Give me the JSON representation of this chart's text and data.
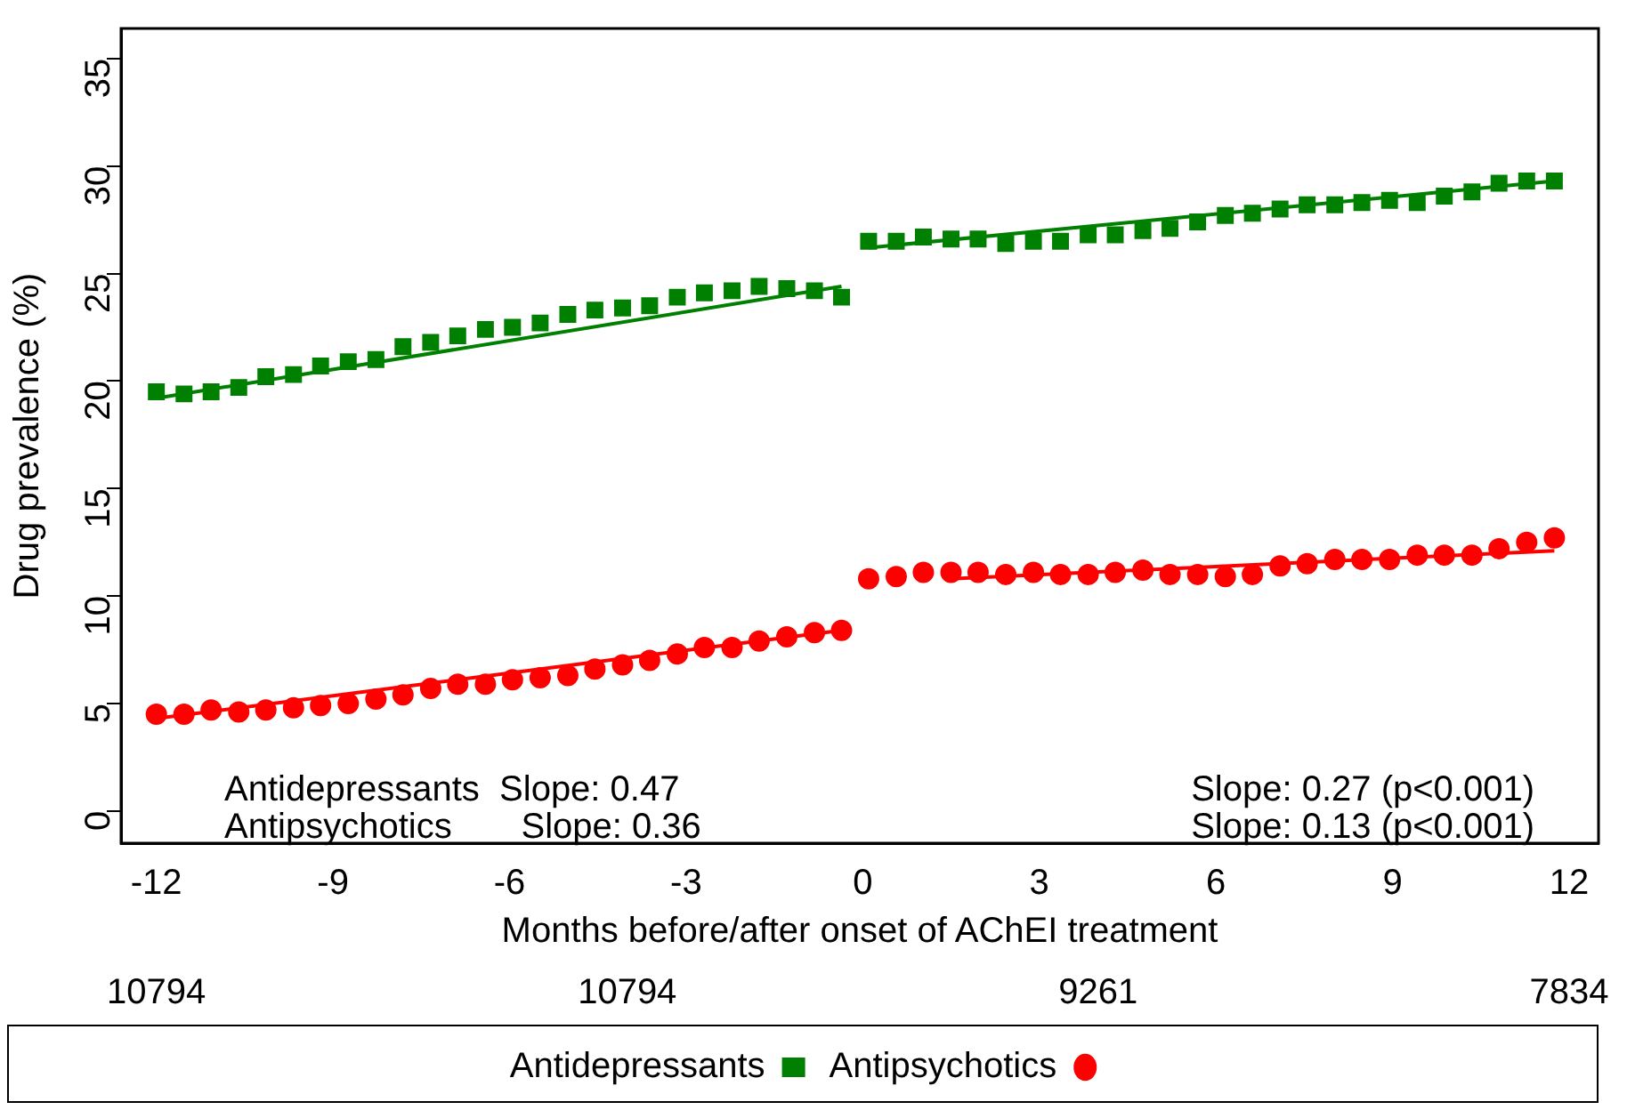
{
  "chart_data": {
    "type": "scatter",
    "xlabel": "Months before/after onset of AChEI treatment",
    "ylabel": "Drug prevalence (%)",
    "xlim": [
      -12.6,
      12.5
    ],
    "xticks": [
      -12,
      -9,
      -6,
      -3,
      0,
      3,
      6,
      9,
      12
    ],
    "ylim": [
      -1.5,
      36.4
    ],
    "yticks": [
      0,
      5,
      10,
      15,
      20,
      25,
      30,
      35
    ],
    "grid": false,
    "legend": "bottom",
    "series": [
      {
        "name": "Antidepressants",
        "color": "#008000",
        "marker": "square",
        "x": [
          -12,
          -11.53,
          -11.07,
          -10.6,
          -10.14,
          -9.67,
          -9.21,
          -8.74,
          -8.27,
          -7.81,
          -7.34,
          -6.88,
          -6.41,
          -5.95,
          -5.48,
          -5.01,
          -4.55,
          -4.08,
          -3.62,
          -3.15,
          -2.69,
          -2.22,
          -1.76,
          -1.29,
          -0.82,
          -0.36
        ],
        "values": [
          19.5,
          19.4,
          19.5,
          19.7,
          20.2,
          20.3,
          20.7,
          20.9,
          21.0,
          21.6,
          21.8,
          22.1,
          22.4,
          22.5,
          22.7,
          23.1,
          23.3,
          23.4,
          23.5,
          23.9,
          24.1,
          24.2,
          24.4,
          24.3,
          24.2,
          23.9
        ]
      },
      {
        "color": "#008000",
        "marker": "square",
        "x": [
          0.1,
          0.57,
          1.03,
          1.5,
          1.96,
          2.43,
          2.9,
          3.36,
          3.83,
          4.29,
          4.76,
          5.22,
          5.69,
          6.16,
          6.62,
          7.09,
          7.55,
          8.02,
          8.48,
          8.95,
          9.42,
          9.88,
          10.35,
          10.81,
          11.28,
          11.75
        ],
        "values": [
          26.5,
          26.5,
          26.7,
          26.6,
          26.6,
          26.4,
          26.5,
          26.5,
          26.8,
          26.8,
          27.0,
          27.1,
          27.4,
          27.7,
          27.8,
          28.0,
          28.2,
          28.2,
          28.3,
          28.4,
          28.3,
          28.6,
          28.8,
          29.2,
          29.3,
          29.3
        ]
      },
      {
        "name": "Antipsychotics",
        "color": "#ff0000",
        "marker": "circle",
        "x": [
          -12,
          -11.53,
          -11.07,
          -10.6,
          -10.14,
          -9.67,
          -9.21,
          -8.74,
          -8.27,
          -7.81,
          -7.34,
          -6.88,
          -6.41,
          -5.95,
          -5.48,
          -5.01,
          -4.55,
          -4.08,
          -3.62,
          -3.15,
          -2.69,
          -2.22,
          -1.76,
          -1.29,
          -0.82,
          -0.36
        ],
        "values": [
          4.5,
          4.5,
          4.7,
          4.6,
          4.7,
          4.8,
          4.9,
          5.0,
          5.2,
          5.4,
          5.7,
          5.9,
          5.9,
          6.1,
          6.2,
          6.3,
          6.6,
          6.8,
          7.0,
          7.3,
          7.6,
          7.6,
          7.9,
          8.1,
          8.3,
          8.4
        ]
      },
      {
        "color": "#ff0000",
        "marker": "circle",
        "x": [
          0.1,
          0.57,
          1.03,
          1.5,
          1.96,
          2.43,
          2.9,
          3.36,
          3.83,
          4.29,
          4.76,
          5.22,
          5.69,
          6.16,
          6.62,
          7.09,
          7.55,
          8.02,
          8.48,
          8.95,
          9.42,
          9.88,
          10.35,
          10.81,
          11.28,
          11.75
        ],
        "values": [
          10.8,
          10.9,
          11.1,
          11.1,
          11.1,
          11.0,
          11.1,
          11.0,
          11.0,
          11.1,
          11.2,
          11.0,
          11.0,
          10.9,
          11.0,
          11.4,
          11.5,
          11.7,
          11.7,
          11.7,
          11.9,
          11.9,
          11.9,
          12.2,
          12.5,
          12.7
        ]
      },
      {
        "type": "line",
        "color": "#008000",
        "marker": "none",
        "x": [
          -12,
          -0.36
        ],
        "values": [
          19.2,
          24.4
        ]
      },
      {
        "type": "line",
        "color": "#008000",
        "marker": "none",
        "x": [
          0.1,
          11.75
        ],
        "values": [
          26.2,
          29.3
        ]
      },
      {
        "type": "line",
        "color": "#ff0000",
        "marker": "none",
        "x": [
          -12,
          -0.36
        ],
        "values": [
          4.3,
          8.4
        ]
      },
      {
        "type": "line",
        "color": "#ff0000",
        "marker": "none",
        "x": [
          1.5,
          11.75
        ],
        "values": [
          10.8,
          12.1
        ]
      }
    ],
    "annotations": [
      "Antidepressants  Slope: 0.47",
      "Antipsychotics       Slope: 0.36",
      "Slope: 0.27 (p<0.001)",
      "Slope: 0.13 (p<0.001)",
      "10794",
      "10794",
      "9261",
      "7834"
    ]
  }
}
